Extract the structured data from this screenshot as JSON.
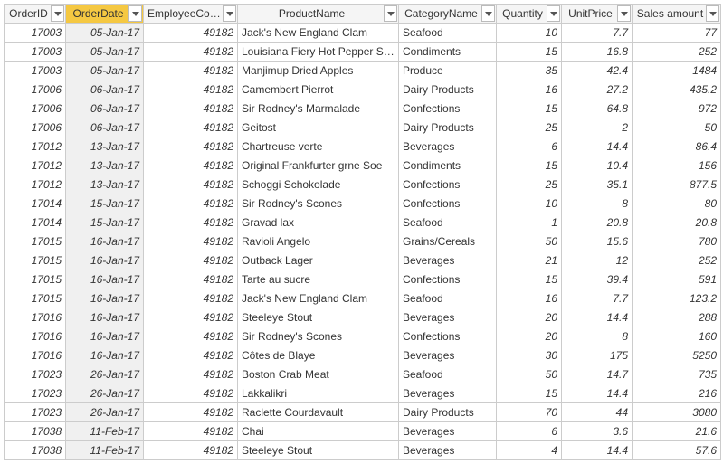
{
  "table": {
    "columns": [
      {
        "key": "order_id",
        "label": "OrderID",
        "type": "num",
        "active": false
      },
      {
        "key": "order_date",
        "label": "OrderDate",
        "type": "date",
        "active": true
      },
      {
        "key": "employee_code",
        "label": "EmployeeCode",
        "type": "num",
        "active": false
      },
      {
        "key": "product_name",
        "label": "ProductName",
        "type": "txt",
        "active": false
      },
      {
        "key": "category_name",
        "label": "CategoryName",
        "type": "txt",
        "active": false
      },
      {
        "key": "quantity",
        "label": "Quantity",
        "type": "num",
        "active": false
      },
      {
        "key": "unit_price",
        "label": "UnitPrice",
        "type": "num",
        "active": false
      },
      {
        "key": "sales_amount",
        "label": "Sales amount",
        "type": "num",
        "active": false
      }
    ],
    "rows": [
      [
        "17003",
        "05-Jan-17",
        "49182",
        "Jack's New England Clam",
        "Seafood",
        "10",
        "7.7",
        "77"
      ],
      [
        "17003",
        "05-Jan-17",
        "49182",
        "Louisiana Fiery Hot Pepper Sauce",
        "Condiments",
        "15",
        "16.8",
        "252"
      ],
      [
        "17003",
        "05-Jan-17",
        "49182",
        "Manjimup Dried Apples",
        "Produce",
        "35",
        "42.4",
        "1484"
      ],
      [
        "17006",
        "06-Jan-17",
        "49182",
        "Camembert Pierrot",
        "Dairy Products",
        "16",
        "27.2",
        "435.2"
      ],
      [
        "17006",
        "06-Jan-17",
        "49182",
        "Sir Rodney's Marmalade",
        "Confections",
        "15",
        "64.8",
        "972"
      ],
      [
        "17006",
        "06-Jan-17",
        "49182",
        "Geitost",
        "Dairy Products",
        "25",
        "2",
        "50"
      ],
      [
        "17012",
        "13-Jan-17",
        "49182",
        "Chartreuse verte",
        "Beverages",
        "6",
        "14.4",
        "86.4"
      ],
      [
        "17012",
        "13-Jan-17",
        "49182",
        "Original Frankfurter grne Soe",
        "Condiments",
        "15",
        "10.4",
        "156"
      ],
      [
        "17012",
        "13-Jan-17",
        "49182",
        "Schoggi Schokolade",
        "Confections",
        "25",
        "35.1",
        "877.5"
      ],
      [
        "17014",
        "15-Jan-17",
        "49182",
        "Sir Rodney's Scones",
        "Confections",
        "10",
        "8",
        "80"
      ],
      [
        "17014",
        "15-Jan-17",
        "49182",
        "Gravad lax",
        "Seafood",
        "1",
        "20.8",
        "20.8"
      ],
      [
        "17015",
        "16-Jan-17",
        "49182",
        "Ravioli Angelo",
        "Grains/Cereals",
        "50",
        "15.6",
        "780"
      ],
      [
        "17015",
        "16-Jan-17",
        "49182",
        "Outback Lager",
        "Beverages",
        "21",
        "12",
        "252"
      ],
      [
        "17015",
        "16-Jan-17",
        "49182",
        "Tarte au sucre",
        "Confections",
        "15",
        "39.4",
        "591"
      ],
      [
        "17015",
        "16-Jan-17",
        "49182",
        "Jack's New England Clam",
        "Seafood",
        "16",
        "7.7",
        "123.2"
      ],
      [
        "17016",
        "16-Jan-17",
        "49182",
        "Steeleye Stout",
        "Beverages",
        "20",
        "14.4",
        "288"
      ],
      [
        "17016",
        "16-Jan-17",
        "49182",
        "Sir Rodney's Scones",
        "Confections",
        "20",
        "8",
        "160"
      ],
      [
        "17016",
        "16-Jan-17",
        "49182",
        "Côtes de Blaye",
        "Beverages",
        "30",
        "175",
        "5250"
      ],
      [
        "17023",
        "26-Jan-17",
        "49182",
        "Boston Crab Meat",
        "Seafood",
        "50",
        "14.7",
        "735"
      ],
      [
        "17023",
        "26-Jan-17",
        "49182",
        "Lakkalikri",
        "Beverages",
        "15",
        "14.4",
        "216"
      ],
      [
        "17023",
        "26-Jan-17",
        "49182",
        "Raclette Courdavault",
        "Dairy Products",
        "70",
        "44",
        "3080"
      ],
      [
        "17038",
        "11-Feb-17",
        "49182",
        "Chai",
        "Beverages",
        "6",
        "3.6",
        "21.6"
      ],
      [
        "17038",
        "11-Feb-17",
        "49182",
        "Steeleye Stout",
        "Beverages",
        "4",
        "14.4",
        "57.6"
      ]
    ]
  }
}
